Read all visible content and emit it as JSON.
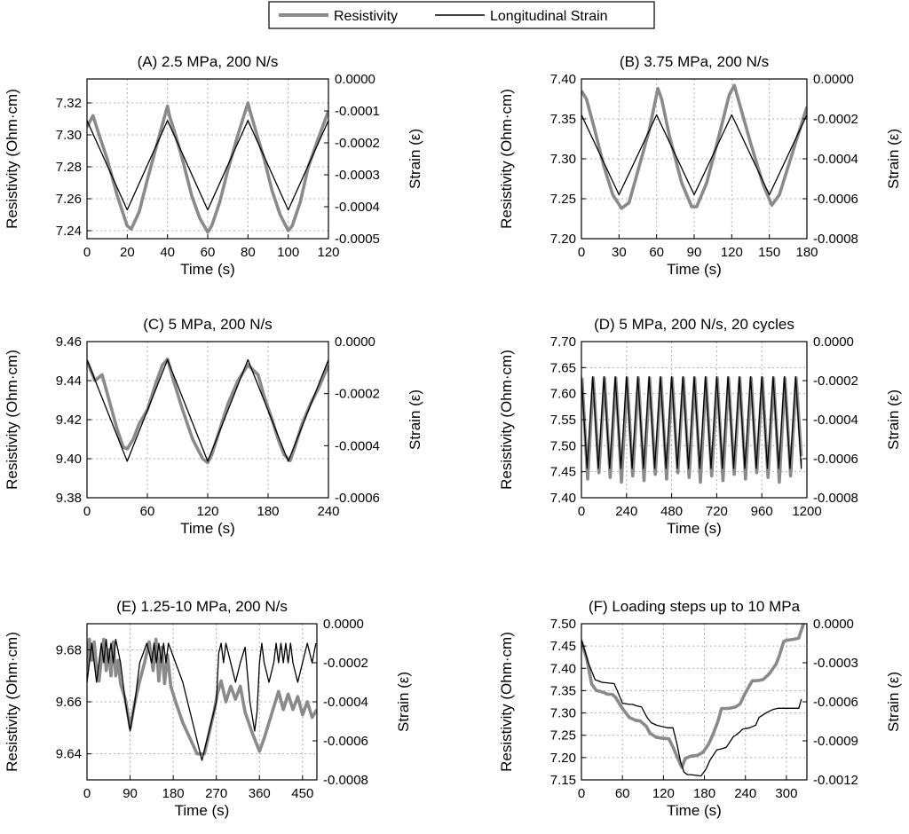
{
  "legend": {
    "resistivity_label": "Resistivity",
    "strain_label": "Longitudinal Strain"
  },
  "colors": {
    "resistivity": "#8a8a8a",
    "strain": "#000000"
  },
  "chart_data": [
    {
      "id": "A",
      "type": "line",
      "title": "(A) 2.5 MPa, 200 N/s",
      "xlabel": "Time (s)",
      "ylabel_left": "Resistivity (Ohm·cm)",
      "ylabel_right": "Strain (ε)",
      "xlim": [
        0,
        120
      ],
      "xticks": [
        "0",
        "20",
        "40",
        "60",
        "80",
        "100",
        "120"
      ],
      "ylim_left": [
        7.235,
        7.335
      ],
      "yticks_left": [
        "7.24",
        "7.26",
        "7.28",
        "7.30",
        "7.32"
      ],
      "yticks_left_values": [
        7.24,
        7.26,
        7.28,
        7.3,
        7.32
      ],
      "ylim_right": [
        -0.0005,
        0.0
      ],
      "yticks_right": [
        "0.0000",
        "-0.0001",
        "-0.0002",
        "-0.0003",
        "-0.0004",
        "-0.0005"
      ],
      "yticks_right_values": [
        0,
        -0.0001,
        -0.0002,
        -0.0003,
        -0.0004,
        -0.0005
      ],
      "series": [
        {
          "name": "Resistivity",
          "axis": "left",
          "x": [
            0,
            3,
            6,
            10,
            15,
            20,
            22,
            26,
            30,
            35,
            40,
            41,
            44,
            48,
            52,
            56,
            60,
            62,
            66,
            70,
            75,
            80,
            81,
            84,
            88,
            92,
            96,
            100,
            102,
            106,
            110,
            115,
            120
          ],
          "y": [
            7.305,
            7.312,
            7.3,
            7.285,
            7.262,
            7.243,
            7.241,
            7.252,
            7.272,
            7.295,
            7.318,
            7.312,
            7.3,
            7.282,
            7.262,
            7.248,
            7.239,
            7.243,
            7.258,
            7.278,
            7.3,
            7.32,
            7.315,
            7.302,
            7.285,
            7.265,
            7.25,
            7.24,
            7.243,
            7.258,
            7.28,
            7.298,
            7.315
          ]
        },
        {
          "name": "Longitudinal Strain",
          "axis": "right",
          "x": [
            0,
            20,
            40,
            60,
            80,
            100,
            120
          ],
          "y": [
            -0.00013,
            -0.00041,
            -0.00013,
            -0.00041,
            -0.00013,
            -0.00041,
            -0.00013
          ]
        }
      ]
    },
    {
      "id": "B",
      "type": "line",
      "title": "(B) 3.75 MPa, 200 N/s",
      "xlabel": "Time (s)",
      "ylabel_left": "Resistivity (Ohm·cm)",
      "ylabel_right": "Strain (ε)",
      "xlim": [
        0,
        180
      ],
      "xticks": [
        "0",
        "30",
        "60",
        "90",
        "120",
        "150",
        "180"
      ],
      "ylim_left": [
        7.2,
        7.4
      ],
      "yticks_left": [
        "7.20",
        "7.25",
        "7.30",
        "7.35",
        "7.40"
      ],
      "yticks_left_values": [
        7.2,
        7.25,
        7.3,
        7.35,
        7.4
      ],
      "ylim_right": [
        -0.0008,
        0.0
      ],
      "yticks_right": [
        "0.0000",
        "-0.0002",
        "-0.0004",
        "-0.0006",
        "-0.0008"
      ],
      "yticks_right_values": [
        0,
        -0.0002,
        -0.0004,
        -0.0006,
        -0.0008
      ],
      "series": [
        {
          "name": "Resistivity",
          "axis": "left",
          "x": [
            0,
            4,
            10,
            18,
            25,
            32,
            38,
            46,
            54,
            61,
            64,
            70,
            80,
            88,
            92,
            100,
            110,
            118,
            122,
            126,
            135,
            145,
            152,
            158,
            166,
            174,
            180
          ],
          "y": [
            7.385,
            7.375,
            7.34,
            7.29,
            7.255,
            7.238,
            7.245,
            7.29,
            7.335,
            7.388,
            7.375,
            7.33,
            7.27,
            7.24,
            7.24,
            7.27,
            7.33,
            7.38,
            7.392,
            7.37,
            7.32,
            7.268,
            7.242,
            7.255,
            7.295,
            7.335,
            7.365
          ]
        },
        {
          "name": "Longitudinal Strain",
          "axis": "right",
          "x": [
            0,
            30,
            60,
            90,
            120,
            150,
            180
          ],
          "y": [
            -0.00018,
            -0.00058,
            -0.00018,
            -0.00058,
            -0.00018,
            -0.00058,
            -0.00018
          ]
        }
      ]
    },
    {
      "id": "C",
      "type": "line",
      "title": "(C) 5 MPa, 200 N/s",
      "xlabel": "Time (s)",
      "ylabel_left": "Resistivity (Ohm·cm)",
      "ylabel_right": "Strain (ε)",
      "xlim": [
        0,
        240
      ],
      "xticks": [
        "0",
        "60",
        "120",
        "180",
        "240"
      ],
      "ylim_left": [
        9.38,
        9.46
      ],
      "yticks_left": [
        "9.38",
        "9.40",
        "9.42",
        "9.44",
        "9.46"
      ],
      "yticks_left_values": [
        9.38,
        9.4,
        9.42,
        9.44,
        9.46
      ],
      "ylim_right": [
        -0.0006,
        0.0
      ],
      "yticks_right": [
        "0.0000",
        "-0.0002",
        "-0.0004",
        "-0.0006"
      ],
      "yticks_right_values": [
        0,
        -0.0002,
        -0.0004,
        -0.0006
      ],
      "series": [
        {
          "name": "Resistivity",
          "axis": "left",
          "x": [
            0,
            8,
            15,
            22,
            30,
            36,
            40,
            46,
            52,
            60,
            68,
            75,
            80,
            86,
            95,
            105,
            115,
            120,
            124,
            132,
            140,
            150,
            160,
            164,
            170,
            176,
            184,
            190,
            196,
            202,
            206,
            214,
            222,
            230,
            240
          ],
          "y": [
            9.45,
            9.44,
            9.443,
            9.43,
            9.415,
            9.406,
            9.405,
            9.41,
            9.418,
            9.425,
            9.438,
            9.448,
            9.451,
            9.44,
            9.425,
            9.41,
            9.4,
            9.398,
            9.402,
            9.415,
            9.428,
            9.44,
            9.448,
            9.446,
            9.443,
            9.432,
            9.42,
            9.41,
            9.402,
            9.399,
            9.405,
            9.418,
            9.428,
            9.436,
            9.448
          ]
        },
        {
          "name": "Longitudinal Strain",
          "axis": "right",
          "x": [
            0,
            40,
            80,
            120,
            160,
            200,
            240
          ],
          "y": [
            -7e-05,
            -0.00046,
            -7e-05,
            -0.00046,
            -7e-05,
            -0.00046,
            -7e-05
          ]
        }
      ]
    },
    {
      "id": "D",
      "type": "line",
      "title": "(D) 5 MPa, 200 N/s, 20 cycles",
      "xlabel": "Time (s)",
      "ylabel_left": "Resistivity (Ohm·cm)",
      "ylabel_right": "Strain (ε)",
      "xlim": [
        0,
        1200
      ],
      "xticks": [
        "0",
        "240",
        "480",
        "720",
        "960",
        "1200"
      ],
      "ylim_left": [
        7.4,
        7.7
      ],
      "yticks_left": [
        "7.40",
        "7.45",
        "7.50",
        "7.55",
        "7.60",
        "7.65",
        "7.70"
      ],
      "yticks_left_values": [
        7.4,
        7.45,
        7.5,
        7.55,
        7.6,
        7.65,
        7.7
      ],
      "ylim_right": [
        -0.0008,
        0.0
      ],
      "yticks_right": [
        "0.0000",
        "-0.0002",
        "-0.0004",
        "-0.0006",
        "-0.0008"
      ],
      "yticks_right_values": [
        0,
        -0.0002,
        -0.0004,
        -0.0006,
        -0.0008
      ],
      "cycles": 20,
      "series": [
        {
          "name": "Resistivity",
          "axis": "left",
          "period": 60,
          "min": 7.43,
          "max": 7.63,
          "x": [
            0,
            1170
          ],
          "y": [
            7.63,
            7.48
          ]
        },
        {
          "name": "Longitudinal Strain",
          "axis": "right",
          "period": 60,
          "min": -0.00065,
          "max": -0.00018,
          "x": [
            0,
            1170
          ],
          "y": [
            -0.00018,
            -0.0006
          ]
        }
      ]
    },
    {
      "id": "E",
      "type": "line",
      "title": "(E) 1.25-10 MPa, 200 N/s",
      "xlabel": "Time (s)",
      "ylabel_left": "Resistivity (Ohm·cm)",
      "ylabel_right": "Strain (ε)",
      "xlim": [
        0,
        480
      ],
      "xticks": [
        "0",
        "90",
        "180",
        "270",
        "360",
        "450"
      ],
      "ylim_left": [
        9.63,
        9.69
      ],
      "yticks_left": [
        "9.64",
        "9.66",
        "9.68"
      ],
      "yticks_left_values": [
        9.64,
        9.66,
        9.68
      ],
      "ylim_right": [
        -0.0008,
        0.0
      ],
      "yticks_right": [
        "0.0000",
        "-0.0002",
        "-0.0004",
        "-0.0006",
        "-0.0008"
      ],
      "yticks_right_values": [
        0,
        -0.0002,
        -0.0004,
        -0.0006,
        -0.0008
      ],
      "series": [
        {
          "name": "Resistivity",
          "axis": "left",
          "x": [
            0,
            5,
            10,
            15,
            20,
            25,
            30,
            35,
            40,
            45,
            50,
            55,
            60,
            65,
            70,
            80,
            90,
            100,
            110,
            120,
            130,
            138,
            144,
            150,
            156,
            162,
            168,
            175,
            185,
            200,
            215,
            230,
            245,
            255,
            265,
            272,
            280,
            290,
            300,
            310,
            320,
            330,
            345,
            360,
            370,
            380,
            390,
            400,
            410,
            420,
            430,
            440,
            450,
            460,
            470,
            480
          ],
          "y": [
            9.672,
            9.684,
            9.676,
            9.683,
            9.673,
            9.668,
            9.676,
            9.684,
            9.672,
            9.68,
            9.67,
            9.683,
            9.67,
            9.676,
            9.667,
            9.661,
            9.65,
            9.66,
            9.668,
            9.675,
            9.683,
            9.672,
            9.684,
            9.668,
            9.681,
            9.667,
            9.678,
            9.666,
            9.66,
            9.652,
            9.646,
            9.64,
            9.64,
            9.648,
            9.656,
            9.663,
            9.668,
            9.66,
            9.666,
            9.661,
            9.666,
            9.656,
            9.648,
            9.641,
            9.646,
            9.652,
            9.658,
            9.664,
            9.657,
            9.663,
            9.657,
            9.662,
            9.655,
            9.66,
            9.654,
            9.657
          ]
        },
        {
          "name": "Longitudinal Strain",
          "axis": "right",
          "x": [
            0,
            5,
            10,
            15,
            20,
            25,
            30,
            35,
            40,
            45,
            50,
            55,
            60,
            70,
            80,
            90,
            100,
            110,
            125,
            135,
            140,
            145,
            150,
            155,
            160,
            165,
            170,
            200,
            240,
            270,
            275,
            280,
            285,
            290,
            300,
            310,
            320,
            330,
            340,
            350,
            355,
            360,
            365,
            370,
            380,
            390,
            395,
            400,
            405,
            410,
            415,
            420,
            425,
            430,
            440,
            450,
            460,
            470,
            478
          ],
          "y": [
            -0.0003,
            -0.0002,
            -0.0001,
            -0.0002,
            -0.0003,
            -0.0002,
            -0.0001,
            -0.0002,
            -8e-05,
            -0.0002,
            -0.0001,
            -0.0002,
            -8e-05,
            -0.0002,
            -0.0004,
            -0.00055,
            -0.0004,
            -0.0002,
            -0.0001,
            -0.0002,
            -0.0001,
            -0.0002,
            -0.0001,
            -0.0002,
            -0.0001,
            -0.0002,
            -0.0001,
            -0.0003,
            -0.0007,
            -0.0004,
            -0.00015,
            -0.0001,
            -0.0002,
            -0.0001,
            -0.0002,
            -0.0003,
            -0.0002,
            -0.00012,
            -0.0004,
            -0.00055,
            -0.00045,
            -0.0002,
            -0.0001,
            -0.0002,
            -0.0003,
            -0.0002,
            -0.0001,
            -0.0002,
            -0.0001,
            -0.0002,
            -0.0001,
            -0.0002,
            -0.0001,
            -0.0002,
            -0.0003,
            -0.0002,
            -0.0001,
            -0.0002,
            -0.0001
          ]
        }
      ]
    },
    {
      "id": "F",
      "type": "line",
      "title": "(F) Loading steps up to 10 MPa",
      "xlabel": "Time (s)",
      "ylabel_left": "Resistivity (Ohm·cm)",
      "ylabel_right": "Strain (ε)",
      "xlim": [
        0,
        330
      ],
      "xticks": [
        "0",
        "60",
        "120",
        "180",
        "240",
        "300"
      ],
      "ylim_left": [
        7.15,
        7.5
      ],
      "yticks_left": [
        "7.15",
        "7.20",
        "7.25",
        "7.30",
        "7.35",
        "7.40",
        "7.45",
        "7.50"
      ],
      "yticks_left_values": [
        7.15,
        7.2,
        7.25,
        7.3,
        7.35,
        7.4,
        7.45,
        7.5
      ],
      "ylim_right": [
        -0.0012,
        0.0
      ],
      "yticks_right": [
        "0.0000",
        "-0.0003",
        "-0.0006",
        "-0.0009",
        "-0.0012"
      ],
      "yticks_right_values": [
        0,
        -0.0003,
        -0.0006,
        -0.0009,
        -0.0012
      ],
      "series": [
        {
          "name": "Resistivity",
          "axis": "left",
          "x": [
            0,
            8,
            15,
            22,
            28,
            34,
            38,
            45,
            50,
            60,
            70,
            80,
            86,
            95,
            100,
            110,
            120,
            128,
            135,
            142,
            147,
            152,
            160,
            170,
            178,
            186,
            192,
            200,
            205,
            215,
            225,
            232,
            240,
            250,
            260,
            266,
            275,
            285,
            290,
            296,
            300,
            310,
            318,
            325
          ],
          "y": [
            7.46,
            7.42,
            7.365,
            7.35,
            7.348,
            7.345,
            7.342,
            7.342,
            7.335,
            7.31,
            7.29,
            7.283,
            7.282,
            7.27,
            7.255,
            7.245,
            7.243,
            7.242,
            7.22,
            7.195,
            7.178,
            7.198,
            7.203,
            7.205,
            7.212,
            7.23,
            7.25,
            7.282,
            7.31,
            7.31,
            7.313,
            7.32,
            7.345,
            7.372,
            7.373,
            7.375,
            7.388,
            7.41,
            7.43,
            7.46,
            7.463,
            7.465,
            7.468,
            7.5
          ]
        },
        {
          "name": "Longitudinal Strain",
          "axis": "right",
          "x": [
            0,
            10,
            20,
            25,
            30,
            48,
            52,
            60,
            70,
            75,
            80,
            88,
            96,
            102,
            110,
            118,
            126,
            134,
            140,
            145,
            150,
            155,
            160,
            175,
            182,
            188,
            198,
            206,
            212,
            222,
            230,
            236,
            246,
            255,
            260,
            272,
            280,
            288,
            300,
            318,
            322
          ],
          "y": [
            -0.00012,
            -0.0003,
            -0.00043,
            -0.00044,
            -0.00045,
            -0.00046,
            -0.00051,
            -0.00061,
            -0.00062,
            -0.00062,
            -0.00063,
            -0.00064,
            -0.00072,
            -0.00076,
            -0.00078,
            -0.00079,
            -0.0008,
            -0.0008,
            -0.00093,
            -0.00106,
            -0.00114,
            -0.00116,
            -0.00116,
            -0.00117,
            -0.00112,
            -0.00105,
            -0.00097,
            -0.00096,
            -0.00095,
            -0.00087,
            -0.00084,
            -0.00081,
            -0.0008,
            -0.00078,
            -0.00072,
            -0.00068,
            -0.00066,
            -0.00065,
            -0.00065,
            -0.00065,
            -0.00058
          ]
        }
      ]
    }
  ]
}
